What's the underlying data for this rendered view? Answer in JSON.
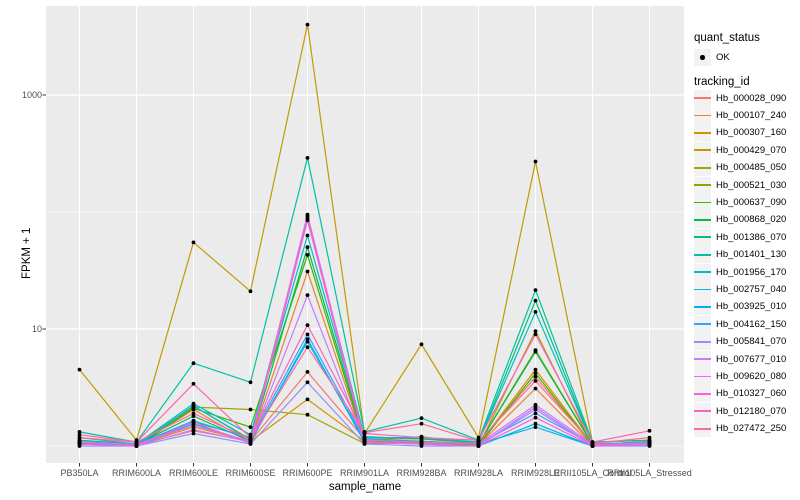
{
  "figure": {
    "panel_bg": "#EBEBEB",
    "grid_color": "#FFFFFF",
    "tick_color": "#333333",
    "axis_text_color": "#4D4D4D",
    "point_color": "#000000",
    "legend_key_bg": "#F2F2F2"
  },
  "axes": {
    "y_title": "FPKM + 1",
    "x_title": "sample_name",
    "y_ticks": [
      {
        "label": "1000",
        "value": 1000
      },
      {
        "label": "10",
        "value": 10
      }
    ],
    "y_gridlines_major": [
      1000,
      10
    ],
    "y_gridlines_minor": [
      100,
      1
    ]
  },
  "legend": {
    "quant_title": "quant_status",
    "quant_items": [
      {
        "label": "OK",
        "marker": "point"
      }
    ],
    "tracking_title": "tracking_id"
  },
  "chart_data": {
    "type": "line",
    "title": "",
    "xlabel": "sample_name",
    "ylabel": "FPKM + 1",
    "y_scale": "log10",
    "ylim": [
      0.74,
      6000
    ],
    "grid": true,
    "legend_position": "right",
    "categories": [
      "PB350LA",
      "RRIM600LA",
      "RRIM600LE",
      "RRIM600SE",
      "RRIM600PE",
      "RRIM901LA",
      "RRIM928BA",
      "RRIM928LA",
      "RRIM928LE",
      "RRII105LA_Control",
      "RRII105LA_Stressed"
    ],
    "series": [
      {
        "name": "Hb_000028_090",
        "color": "#F8766D",
        "values": [
          1.1,
          1.02,
          1.35,
          1.1,
          4.3,
          1.15,
          1.15,
          1.05,
          3.9,
          1.02,
          1.1
        ]
      },
      {
        "name": "Hb_000107_240",
        "color": "#EA8331",
        "values": [
          1.05,
          1.0,
          2.05,
          1.08,
          31,
          1.08,
          1.08,
          1.02,
          3.1,
          1.0,
          1.05
        ]
      },
      {
        "name": "Hb_000307_160",
        "color": "#D89000",
        "values": [
          1.08,
          1.02,
          1.45,
          1.1,
          2.5,
          1.1,
          1.05,
          1.03,
          4.5,
          1.02,
          1.06
        ]
      },
      {
        "name": "Hb_000429_070",
        "color": "#C09B00",
        "values": [
          4.5,
          1.12,
          55,
          21,
          4000,
          1.28,
          7.4,
          1.18,
          270,
          1.08,
          1.12
        ]
      },
      {
        "name": "Hb_000485_050",
        "color": "#A3A500",
        "values": [
          1.04,
          1.0,
          2.15,
          2.05,
          1.85,
          1.05,
          1.06,
          1.0,
          9.6,
          1.0,
          1.04
        ]
      },
      {
        "name": "Hb_000521_030",
        "color": "#7CAE00",
        "values": [
          1.08,
          1.03,
          2.2,
          1.14,
          92,
          1.12,
          1.2,
          1.04,
          6.6,
          1.03,
          1.08
        ]
      },
      {
        "name": "Hb_000637_090",
        "color": "#39B600",
        "values": [
          1.05,
          1.0,
          2.1,
          1.45,
          43,
          1.08,
          1.1,
          1.01,
          4.2,
          1.0,
          1.04
        ]
      },
      {
        "name": "Hb_000868_020",
        "color": "#00BB4E",
        "values": [
          1.08,
          1.03,
          1.8,
          1.1,
          50,
          1.14,
          1.1,
          1.04,
          6.4,
          1.03,
          1.07
        ]
      },
      {
        "name": "Hb_001386_070",
        "color": "#00BF7D",
        "values": [
          1.12,
          1.04,
          1.6,
          1.18,
          88,
          1.2,
          1.15,
          1.08,
          17.5,
          1.04,
          1.08
        ]
      },
      {
        "name": "Hb_001401_130",
        "color": "#00C1A3",
        "values": [
          1.32,
          1.08,
          5.1,
          3.5,
          290,
          1.32,
          1.73,
          1.12,
          21.5,
          1.08,
          1.12
        ]
      },
      {
        "name": "Hb_001956_170",
        "color": "#00BFC4",
        "values": [
          1.18,
          1.04,
          2.3,
          1.25,
          63,
          1.18,
          1.18,
          1.08,
          14,
          1.04,
          1.08
        ]
      },
      {
        "name": "Hb_002757_040",
        "color": "#00BAE0",
        "values": [
          1.08,
          1.0,
          2.2,
          1.12,
          7.8,
          1.12,
          1.08,
          1.04,
          1.45,
          1.0,
          1.04
        ]
      },
      {
        "name": "Hb_003925_010",
        "color": "#00B0F6",
        "values": [
          1.04,
          1.0,
          1.55,
          1.08,
          8.2,
          1.08,
          1.04,
          1.0,
          1.55,
          1.0,
          1.02
        ]
      },
      {
        "name": "Hb_004162_150",
        "color": "#35A2FF",
        "values": [
          1.08,
          1.03,
          1.65,
          1.15,
          9.0,
          1.15,
          1.08,
          1.04,
          1.9,
          1.03,
          1.05
        ]
      },
      {
        "name": "Hb_005841_070",
        "color": "#9590FF",
        "values": [
          1.0,
          1.0,
          1.28,
          1.04,
          3.5,
          1.04,
          1.0,
          1.0,
          2.15,
          1.0,
          1.0
        ]
      },
      {
        "name": "Hb_007677_010",
        "color": "#C77CFF",
        "values": [
          1.04,
          1.0,
          1.38,
          1.08,
          19.5,
          1.08,
          1.04,
          1.0,
          2.05,
          1.0,
          1.03
        ]
      },
      {
        "name": "Hb_009620_080",
        "color": "#E76BF3",
        "values": [
          1.08,
          1.03,
          1.5,
          1.1,
          95,
          1.12,
          1.08,
          1.04,
          2.25,
          1.03,
          1.06
        ]
      },
      {
        "name": "Hb_010327_060",
        "color": "#FA62DB",
        "values": [
          1.04,
          1.0,
          1.6,
          1.05,
          85,
          1.08,
          1.04,
          1.0,
          1.75,
          1.0,
          1.04
        ]
      },
      {
        "name": "Hb_012180_070",
        "color": "#FF62BC",
        "values": [
          1.18,
          1.08,
          3.4,
          1.18,
          10.8,
          1.28,
          1.18,
          1.12,
          9.0,
          1.08,
          1.35
        ]
      },
      {
        "name": "Hb_027472_250",
        "color": "#FF6A98",
        "values": [
          1.25,
          1.08,
          1.9,
          1.14,
          7.0,
          1.3,
          1.55,
          1.1,
          3.6,
          1.05,
          1.18
        ]
      }
    ]
  }
}
